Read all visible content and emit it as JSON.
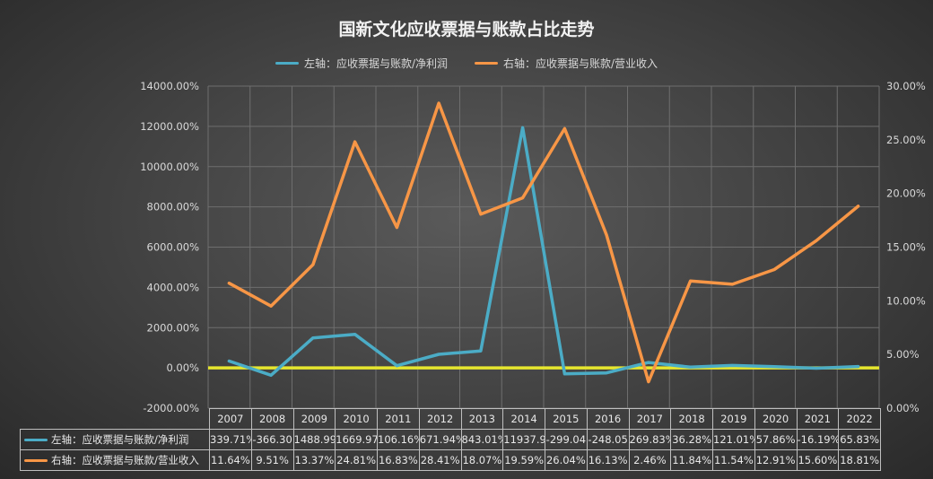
{
  "chart_data": {
    "type": "line",
    "title": "国新文化应收票据与账款占比走势",
    "categories": [
      "2007",
      "2008",
      "2009",
      "2010",
      "2011",
      "2012",
      "2013",
      "2014",
      "2015",
      "2016",
      "2017",
      "2018",
      "2019",
      "2020",
      "2021",
      "2022"
    ],
    "series": [
      {
        "name": "左轴：应收票据与账款/净利润",
        "axis": "left",
        "color": "#4bacc6",
        "values": [
          339.71,
          -366.3,
          1488.99,
          1669.97,
          106.16,
          671.94,
          843.01,
          11937.9,
          -299.04,
          -248.05,
          269.83,
          36.28,
          121.01,
          57.86,
          -16.19,
          65.83
        ],
        "labels": [
          "339.71%",
          "-366.30",
          "1488.99",
          "1669.97",
          "106.16%",
          "671.94%",
          "843.01%",
          "11937.9",
          "-299.04",
          "-248.05",
          "269.83%",
          "36.28%",
          "121.01%",
          "57.86%",
          "-16.19%",
          "65.83%"
        ]
      },
      {
        "name": "右轴：应收票据与账款/营业收入",
        "axis": "right",
        "color": "#f79646",
        "values": [
          11.64,
          9.51,
          13.37,
          24.81,
          16.83,
          28.41,
          18.07,
          19.59,
          26.04,
          16.13,
          2.46,
          11.84,
          11.54,
          12.91,
          15.6,
          18.81
        ],
        "labels": [
          "11.64%",
          "9.51%",
          "13.37%",
          "24.81%",
          "16.83%",
          "28.41%",
          "18.07%",
          "19.59%",
          "26.04%",
          "16.13%",
          "2.46%",
          "11.84%",
          "11.54%",
          "12.91%",
          "15.60%",
          "18.81%"
        ]
      }
    ],
    "left_axis": {
      "ticks": [
        "14000.00%",
        "12000.00%",
        "10000.00%",
        "8000.00%",
        "6000.00%",
        "4000.00%",
        "2000.00%",
        "0.00%",
        "-2000.00%"
      ],
      "ylim": [
        -2000,
        14000
      ]
    },
    "right_axis": {
      "ticks": [
        "30.00%",
        "25.00%",
        "20.00%",
        "15.00%",
        "10.00%",
        "5.00%",
        "0.00%"
      ],
      "ylim": [
        0,
        30
      ]
    },
    "zero_line_color": "#e6e62e",
    "grid": true,
    "legend_position": "top",
    "data_table": true
  }
}
